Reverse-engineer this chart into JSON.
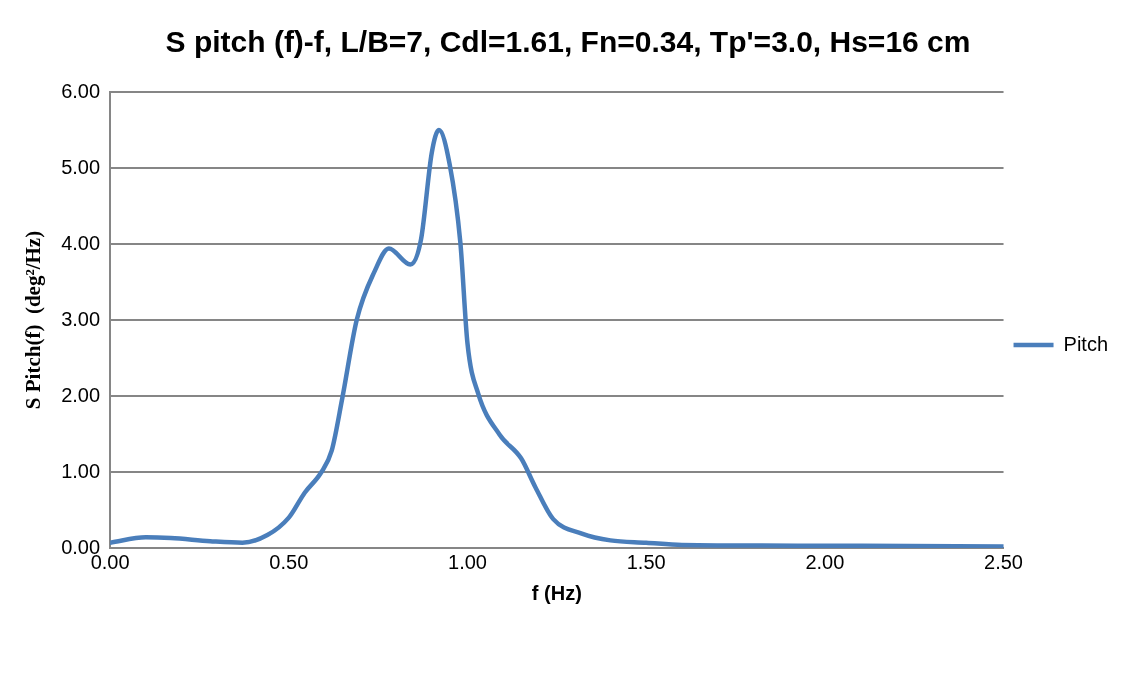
{
  "chart_data": {
    "type": "line",
    "title": "S pitch (f)-f, L/B=7, Cdl=1.61, Fn=0.34, Tp'=3.0, Hs=16 cm",
    "xlabel": "f (Hz)",
    "ylabel": "S Pitch(f)  (deg²/Hz)",
    "x": [
      0,
      0.1,
      0.17,
      0.28,
      0.37,
      0.44,
      0.5,
      0.545,
      0.59,
      0.62,
      0.65,
      0.69,
      0.74,
      0.78,
      0.84,
      0.87,
      0.9,
      0.92,
      0.95,
      0.98,
      1.0,
      1.03,
      1.09,
      1.15,
      1.19,
      1.24,
      1.32,
      1.4,
      1.5,
      1.6,
      2.0,
      2.5
    ],
    "series": [
      {
        "name": "Pitch",
        "color": "#4a7ebb",
        "values": [
          0.07,
          0.14,
          0.13,
          0.09,
          0.07,
          0.17,
          0.4,
          0.73,
          0.99,
          1.28,
          1.98,
          3.0,
          3.64,
          3.94,
          3.73,
          4.06,
          5.2,
          5.5,
          5.05,
          4.02,
          2.69,
          2.03,
          1.49,
          1.18,
          0.8,
          0.38,
          0.19,
          0.1,
          0.07,
          0.04,
          0.03,
          0.02
        ]
      }
    ],
    "xlim": [
      0,
      2.5
    ],
    "ylim": [
      0,
      6
    ],
    "xticks": [
      {
        "value": 0,
        "label": "0.00"
      },
      {
        "value": 0.5,
        "label": "0.50"
      },
      {
        "value": 1,
        "label": "1.00"
      },
      {
        "value": 1.5,
        "label": "1.50"
      },
      {
        "value": 2,
        "label": "2.00"
      },
      {
        "value": 2.5,
        "label": "2.50"
      }
    ],
    "yticks": [
      {
        "value": 0,
        "label": "0.00"
      },
      {
        "value": 1,
        "label": "1.00"
      },
      {
        "value": 2,
        "label": "2.00"
      },
      {
        "value": 3,
        "label": "3.00"
      },
      {
        "value": 4,
        "label": "4.00"
      },
      {
        "value": 5,
        "label": "5.00"
      },
      {
        "value": 6,
        "label": "6.00"
      }
    ],
    "grid": "y",
    "legend": "right",
    "marker": "none",
    "line_style": "solid"
  }
}
